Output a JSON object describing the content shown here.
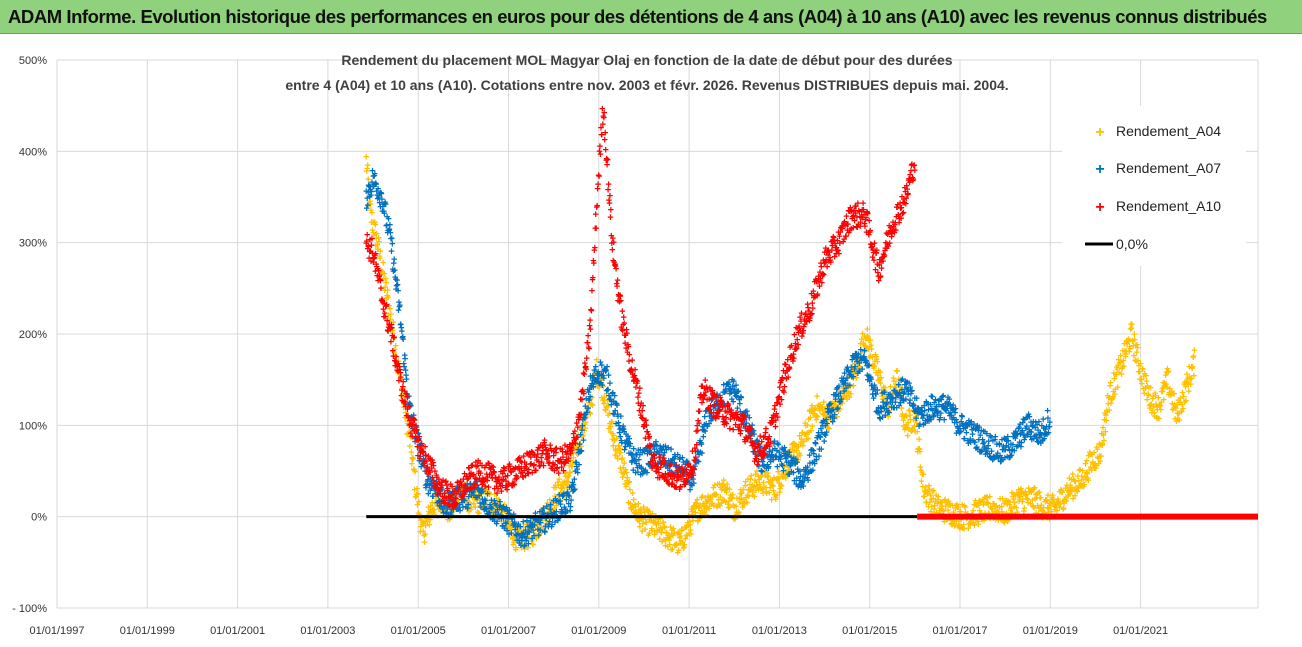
{
  "banner": {
    "text": "ADAM Informe. Evolution historique des performances en euros pour des détentions de 4 ans (A04) à 10 ans (A10) avec les revenus connus distribués"
  },
  "chart_data": {
    "type": "scatter",
    "title_lines": [
      "Rendement du placement MOL Magyar Olaj en fonction de la date de début pour des durées",
      "entre 4 (A04) et 10 ans (A10). Cotations entre nov. 2003 et févr. 2026. Revenus DISTRIBUES depuis mai. 2004."
    ],
    "xlabel": "",
    "ylabel": "",
    "x_tick_labels": [
      "01/01/1997",
      "01/01/1999",
      "01/01/2001",
      "01/01/2003",
      "01/01/2005",
      "01/01/2007",
      "01/01/2009",
      "01/01/2011",
      "01/01/2013",
      "01/01/2015",
      "01/01/2017",
      "01/01/2019",
      "01/01/2021"
    ],
    "x_range_years": [
      1997,
      2023.6
    ],
    "y_tick_labels": [
      "500%",
      "400%",
      "300%",
      "200%",
      "100%",
      "0%",
      "- 100%"
    ],
    "ylim_percent": [
      -100,
      500
    ],
    "grid": true,
    "legend_position": "top-right",
    "series": [
      {
        "name": "Rendement_A04",
        "color": "#ffc000",
        "marker": "+",
        "points": [
          [
            2003.85,
            390
          ],
          [
            2003.95,
            330
          ],
          [
            2004.1,
            300
          ],
          [
            2004.3,
            245
          ],
          [
            2004.45,
            200
          ],
          [
            2004.6,
            150
          ],
          [
            2004.8,
            90
          ],
          [
            2004.95,
            30
          ],
          [
            2005.1,
            -20
          ],
          [
            2005.3,
            10
          ],
          [
            2005.5,
            20
          ],
          [
            2005.7,
            5
          ],
          [
            2005.9,
            30
          ],
          [
            2006.2,
            15
          ],
          [
            2006.5,
            20
          ],
          [
            2006.8,
            10
          ],
          [
            2007.0,
            -10
          ],
          [
            2007.2,
            -25
          ],
          [
            2007.5,
            -20
          ],
          [
            2007.8,
            0
          ],
          [
            2008.0,
            20
          ],
          [
            2008.3,
            40
          ],
          [
            2008.6,
            90
          ],
          [
            2008.8,
            120
          ],
          [
            2008.95,
            160
          ],
          [
            2009.1,
            140
          ],
          [
            2009.3,
            90
          ],
          [
            2009.5,
            60
          ],
          [
            2009.7,
            20
          ],
          [
            2009.9,
            0
          ],
          [
            2010.2,
            -10
          ],
          [
            2010.5,
            -20
          ],
          [
            2010.8,
            -30
          ],
          [
            2011.0,
            -10
          ],
          [
            2011.2,
            10
          ],
          [
            2011.5,
            20
          ],
          [
            2011.8,
            30
          ],
          [
            2012.0,
            10
          ],
          [
            2012.3,
            30
          ],
          [
            2012.6,
            40
          ],
          [
            2012.9,
            30
          ],
          [
            2013.2,
            60
          ],
          [
            2013.5,
            80
          ],
          [
            2013.8,
            120
          ],
          [
            2014.1,
            110
          ],
          [
            2014.4,
            130
          ],
          [
            2014.7,
            160
          ],
          [
            2014.9,
            200
          ],
          [
            2015.1,
            170
          ],
          [
            2015.4,
            120
          ],
          [
            2015.6,
            150
          ],
          [
            2015.8,
            100
          ],
          [
            2016.0,
            110
          ],
          [
            2016.2,
            30
          ],
          [
            2016.5,
            10
          ],
          [
            2016.8,
            5
          ],
          [
            2017.1,
            0
          ],
          [
            2017.4,
            5
          ],
          [
            2017.7,
            10
          ],
          [
            2018.0,
            5
          ],
          [
            2018.3,
            20
          ],
          [
            2018.6,
            20
          ],
          [
            2018.9,
            10
          ],
          [
            2019.1,
            10
          ],
          [
            2019.4,
            30
          ],
          [
            2019.7,
            40
          ],
          [
            2019.9,
            60
          ],
          [
            2020.1,
            70
          ],
          [
            2020.3,
            130
          ],
          [
            2020.6,
            170
          ],
          [
            2020.8,
            200
          ],
          [
            2021.0,
            160
          ],
          [
            2021.2,
            130
          ],
          [
            2021.4,
            120
          ],
          [
            2021.6,
            150
          ],
          [
            2021.8,
            110
          ],
          [
            2022.0,
            140
          ],
          [
            2022.2,
            170
          ]
        ]
      },
      {
        "name": "Rendement_A07",
        "color": "#0070c0",
        "marker": "+",
        "points": [
          [
            2003.85,
            350
          ],
          [
            2004.0,
            370
          ],
          [
            2004.2,
            350
          ],
          [
            2004.4,
            300
          ],
          [
            2004.6,
            220
          ],
          [
            2004.8,
            120
          ],
          [
            2005.0,
            80
          ],
          [
            2005.2,
            40
          ],
          [
            2005.4,
            30
          ],
          [
            2005.6,
            10
          ],
          [
            2005.8,
            20
          ],
          [
            2006.0,
            20
          ],
          [
            2006.3,
            30
          ],
          [
            2006.6,
            10
          ],
          [
            2006.9,
            0
          ],
          [
            2007.1,
            -10
          ],
          [
            2007.3,
            -20
          ],
          [
            2007.6,
            -10
          ],
          [
            2007.9,
            0
          ],
          [
            2008.1,
            10
          ],
          [
            2008.4,
            20
          ],
          [
            2008.6,
            80
          ],
          [
            2008.8,
            140
          ],
          [
            2009.0,
            160
          ],
          [
            2009.2,
            150
          ],
          [
            2009.4,
            110
          ],
          [
            2009.6,
            80
          ],
          [
            2009.8,
            60
          ],
          [
            2010.0,
            60
          ],
          [
            2010.3,
            70
          ],
          [
            2010.6,
            60
          ],
          [
            2010.9,
            50
          ],
          [
            2011.1,
            40
          ],
          [
            2011.4,
            110
          ],
          [
            2011.7,
            130
          ],
          [
            2012.0,
            140
          ],
          [
            2012.3,
            100
          ],
          [
            2012.6,
            60
          ],
          [
            2012.9,
            70
          ],
          [
            2013.2,
            60
          ],
          [
            2013.5,
            40
          ],
          [
            2013.8,
            70
          ],
          [
            2014.1,
            110
          ],
          [
            2014.4,
            140
          ],
          [
            2014.7,
            170
          ],
          [
            2014.9,
            170
          ],
          [
            2015.2,
            120
          ],
          [
            2015.5,
            130
          ],
          [
            2015.8,
            140
          ],
          [
            2016.1,
            110
          ],
          [
            2016.4,
            120
          ],
          [
            2016.7,
            120
          ],
          [
            2017.0,
            100
          ],
          [
            2017.3,
            90
          ],
          [
            2017.6,
            80
          ],
          [
            2017.9,
            70
          ],
          [
            2018.2,
            80
          ],
          [
            2018.5,
            100
          ],
          [
            2018.8,
            90
          ],
          [
            2019.0,
            110
          ]
        ]
      },
      {
        "name": "Rendement_A10",
        "color": "#ff0000",
        "marker": "+",
        "points": [
          [
            2003.85,
            300
          ],
          [
            2004.0,
            290
          ],
          [
            2004.2,
            240
          ],
          [
            2004.4,
            200
          ],
          [
            2004.6,
            150
          ],
          [
            2004.8,
            110
          ],
          [
            2005.0,
            80
          ],
          [
            2005.2,
            60
          ],
          [
            2005.5,
            30
          ],
          [
            2005.8,
            20
          ],
          [
            2006.1,
            40
          ],
          [
            2006.4,
            50
          ],
          [
            2006.7,
            40
          ],
          [
            2006.9,
            40
          ],
          [
            2007.2,
            50
          ],
          [
            2007.5,
            60
          ],
          [
            2007.8,
            70
          ],
          [
            2008.1,
            60
          ],
          [
            2008.4,
            70
          ],
          [
            2008.6,
            120
          ],
          [
            2008.8,
            200
          ],
          [
            2009.0,
            380
          ],
          [
            2009.1,
            450
          ],
          [
            2009.3,
            300
          ],
          [
            2009.5,
            220
          ],
          [
            2009.7,
            170
          ],
          [
            2009.9,
            130
          ],
          [
            2010.2,
            60
          ],
          [
            2010.5,
            50
          ],
          [
            2010.8,
            40
          ],
          [
            2011.1,
            60
          ],
          [
            2011.3,
            140
          ],
          [
            2011.6,
            120
          ],
          [
            2011.9,
            110
          ],
          [
            2012.2,
            100
          ],
          [
            2012.5,
            70
          ],
          [
            2012.8,
            90
          ],
          [
            2013.1,
            150
          ],
          [
            2013.4,
            200
          ],
          [
            2013.7,
            230
          ],
          [
            2014.0,
            280
          ],
          [
            2014.3,
            300
          ],
          [
            2014.6,
            330
          ],
          [
            2014.9,
            330
          ],
          [
            2015.2,
            270
          ],
          [
            2015.5,
            320
          ],
          [
            2015.8,
            350
          ],
          [
            2016.0,
            390
          ]
        ]
      },
      {
        "name": "0,0%",
        "color": "#000000",
        "marker": "line",
        "x_range": [
          2003.85,
          2016.05
        ],
        "value": 0
      }
    ],
    "red_zero_band_x_range": [
      2016.05,
      2023.6
    ]
  }
}
